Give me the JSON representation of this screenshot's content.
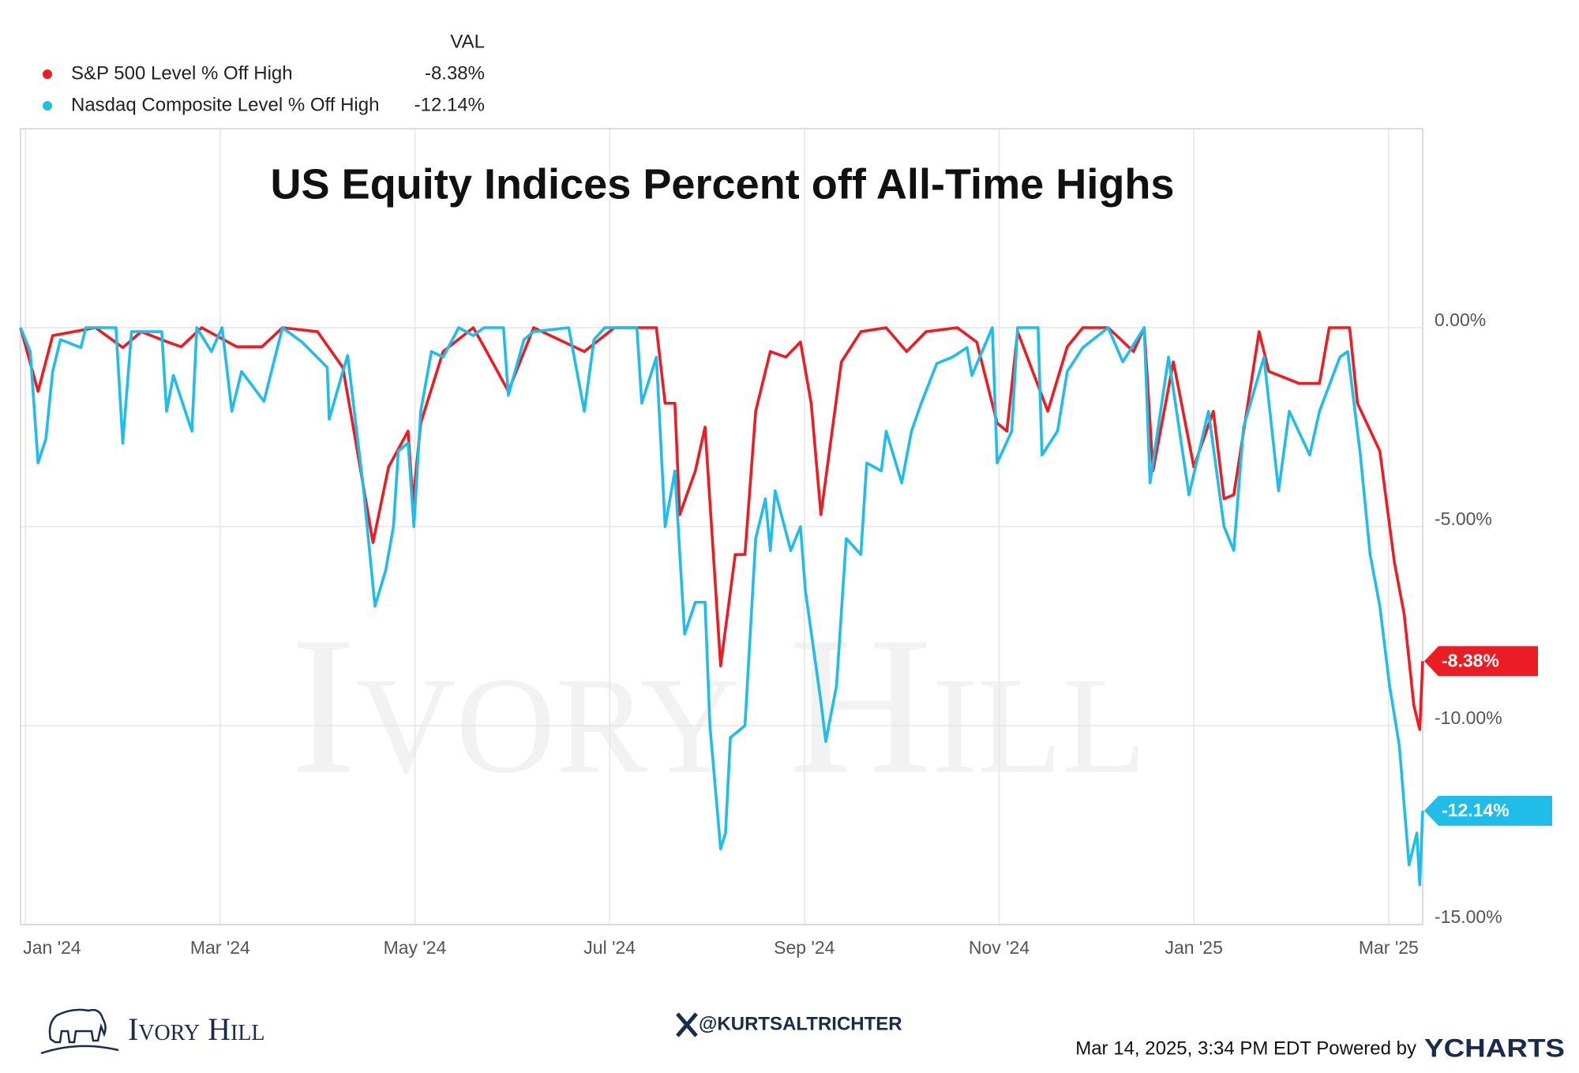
{
  "chart_data": {
    "type": "line",
    "title": "US Equity Indices Percent off All-Time Highs",
    "legend_header": "VAL",
    "xlim": [
      -0.05,
      14.35
    ],
    "xticks": [
      {
        "value": 0,
        "label": "Jan '24"
      },
      {
        "value": 2,
        "label": "Mar '24"
      },
      {
        "value": 4,
        "label": "May '24"
      },
      {
        "value": 6,
        "label": "Jul '24"
      },
      {
        "value": 8,
        "label": "Sep '24"
      },
      {
        "value": 10,
        "label": "Nov '24"
      },
      {
        "value": 12,
        "label": "Jan '25"
      },
      {
        "value": 14,
        "label": "Mar '25"
      }
    ],
    "ylim": [
      -15,
      5
    ],
    "yticks": [
      {
        "value": 0,
        "label": "0.00%"
      },
      {
        "value": -5,
        "label": "-5.00%"
      },
      {
        "value": -10,
        "label": "-10.00%"
      },
      {
        "value": -15,
        "label": "-15.00%"
      }
    ],
    "grid": true,
    "series": [
      {
        "name": "S&P 500 Level % Off High",
        "color": "#ec1c24",
        "current": {
          "value": -8.38,
          "label": "-8.38%"
        },
        "x": [
          -0.05,
          0.13,
          0.28,
          0.72,
          1.0,
          1.19,
          1.45,
          1.6,
          1.81,
          2.17,
          2.43,
          2.64,
          3.0,
          3.26,
          3.36,
          3.57,
          3.73,
          3.93,
          3.98,
          4.06,
          4.29,
          4.6,
          4.71,
          4.96,
          5.22,
          5.74,
          6.05,
          6.48,
          6.57,
          6.67,
          6.72,
          6.88,
          6.98,
          7.14,
          7.29,
          7.39,
          7.5,
          7.65,
          7.81,
          7.96,
          8.07,
          8.17,
          8.38,
          8.58,
          8.84,
          9.05,
          9.25,
          9.57,
          9.77,
          9.98,
          10.08,
          10.19,
          10.5,
          10.7,
          10.86,
          11.12,
          11.38,
          11.49,
          11.58,
          11.79,
          12.0,
          12.2,
          12.31,
          12.41,
          12.67,
          12.77,
          13.08,
          13.29,
          13.39,
          13.6,
          13.68,
          13.91,
          14.06,
          14.16,
          14.26,
          14.32,
          14.35
        ],
        "values": [
          0,
          -1.6,
          -0.2,
          0,
          -0.5,
          -0.1,
          -0.35,
          -0.48,
          0,
          -0.48,
          -0.48,
          0,
          -0.1,
          -1.0,
          -2.4,
          -5.4,
          -3.5,
          -2.6,
          -4.4,
          -2.4,
          -0.6,
          0,
          -0.48,
          -1.6,
          0,
          -0.6,
          0,
          0,
          -1.9,
          -1.9,
          -4.7,
          -3.6,
          -2.5,
          -8.5,
          -5.7,
          -5.7,
          -2.1,
          -0.6,
          -0.74,
          -0.36,
          -1.9,
          -4.7,
          -0.86,
          -0.1,
          0,
          -0.6,
          -0.1,
          0,
          -0.36,
          -2.4,
          -2.6,
          -0.1,
          -2.1,
          -0.48,
          0,
          0,
          -0.6,
          0,
          -3.6,
          -0.86,
          -3.5,
          -2.1,
          -4.3,
          -4.2,
          -0.1,
          -1.1,
          -1.4,
          -1.4,
          0,
          0,
          -1.9,
          -3.1,
          -5.9,
          -7.2,
          -9.5,
          -10.1,
          -8.38
        ]
      },
      {
        "name": "Nasdaq Composite Level % Off High",
        "color": "#1fbde8",
        "current": {
          "value": -12.14,
          "label": "-12.14%"
        },
        "x": [
          -0.05,
          0.05,
          0.13,
          0.21,
          0.28,
          0.36,
          0.57,
          0.62,
          0.93,
          1.0,
          1.09,
          1.4,
          1.45,
          1.52,
          1.71,
          1.76,
          1.91,
          2.02,
          2.12,
          2.22,
          2.45,
          2.64,
          2.84,
          3.1,
          3.12,
          3.26,
          3.31,
          3.47,
          3.59,
          3.7,
          3.78,
          3.83,
          3.93,
          3.99,
          4.06,
          4.17,
          4.29,
          4.45,
          4.6,
          4.71,
          4.91,
          4.96,
          5.12,
          5.22,
          5.58,
          5.74,
          5.84,
          5.95,
          6.28,
          6.33,
          6.48,
          6.57,
          6.67,
          6.77,
          6.88,
          6.98,
          7.03,
          7.14,
          7.19,
          7.24,
          7.39,
          7.5,
          7.6,
          7.65,
          7.7,
          7.86,
          7.96,
          8.01,
          8.17,
          8.22,
          8.33,
          8.43,
          8.58,
          8.64,
          8.79,
          8.84,
          9.0,
          9.1,
          9.2,
          9.36,
          9.52,
          9.67,
          9.72,
          9.93,
          9.98,
          10.13,
          10.19,
          10.4,
          10.44,
          10.6,
          10.7,
          10.86,
          11.12,
          11.27,
          11.49,
          11.55,
          11.74,
          11.95,
          12.15,
          12.31,
          12.41,
          12.51,
          12.72,
          12.87,
          12.98,
          13.19,
          13.29,
          13.5,
          13.58,
          13.71,
          13.81,
          13.91,
          14.01,
          14.11,
          14.21,
          14.29,
          14.32,
          14.35
        ],
        "values": [
          0,
          -0.6,
          -3.4,
          -2.8,
          -1.1,
          -0.3,
          -0.5,
          0,
          0,
          -2.9,
          -0.1,
          -0.1,
          -2.1,
          -1.2,
          -2.6,
          0,
          -0.6,
          0,
          -2.1,
          -1.1,
          -1.85,
          0,
          -0.36,
          -1.0,
          -2.3,
          -1.1,
          -0.7,
          -4.0,
          -7.0,
          -6.1,
          -5.0,
          -3.1,
          -2.9,
          -5.0,
          -2.1,
          -0.6,
          -0.74,
          0,
          -0.2,
          0,
          0,
          -1.7,
          -0.3,
          -0.1,
          0,
          -2.1,
          -0.3,
          0,
          0,
          -1.9,
          -0.74,
          -5.0,
          -3.6,
          -7.7,
          -6.9,
          -6.9,
          -10.0,
          -13.1,
          -12.7,
          -10.3,
          -10.0,
          -5.3,
          -4.3,
          -5.6,
          -4.1,
          -5.6,
          -5.0,
          -6.6,
          -9.4,
          -10.4,
          -9.0,
          -5.3,
          -5.7,
          -3.4,
          -3.6,
          -2.6,
          -3.9,
          -2.6,
          -1.9,
          -0.9,
          -0.74,
          -0.5,
          -1.2,
          0,
          -3.4,
          -2.6,
          0,
          0,
          -3.2,
          -2.6,
          -1.1,
          -0.5,
          0,
          -0.86,
          0,
          -3.9,
          -0.74,
          -4.2,
          -2.1,
          -5.0,
          -5.6,
          -2.5,
          -0.74,
          -4.1,
          -2.1,
          -3.2,
          -2.1,
          -0.74,
          -0.6,
          -3.2,
          -5.7,
          -7.0,
          -9.0,
          -10.5,
          -13.5,
          -12.7,
          -14.0,
          -12.14
        ]
      }
    ]
  },
  "watermark": "Ivory Hill",
  "footer": {
    "logo": "Ivory Hill",
    "handle": "@KURTSALTRICHTER",
    "timestamp": "Mar 14, 2025, 3:34 PM EDT Powered by",
    "brand": "YCHARTS"
  }
}
